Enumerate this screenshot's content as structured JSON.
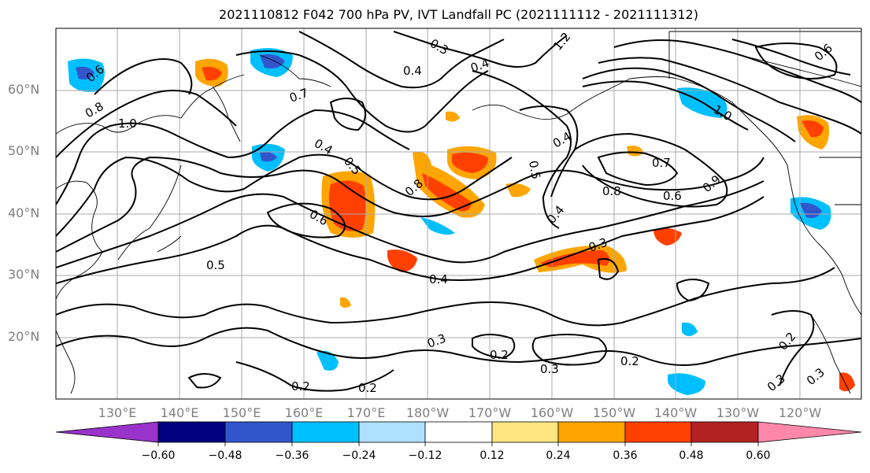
{
  "title": "2021110812 F042 700 hPa PV, IVT Landfall PC (2021111112 - 2021111312)",
  "map": {
    "lat_labels": [
      "60°N",
      "50°N",
      "40°N",
      "30°N",
      "20°N"
    ],
    "lon_labels": [
      "130°E",
      "140°E",
      "150°E",
      "160°E",
      "170°E",
      "180°W",
      "170°W",
      "160°W",
      "150°W",
      "140°W",
      "130°W",
      "120°W"
    ],
    "contour_labels": [
      "0.5",
      "0.6",
      "0.8",
      "1.0",
      "0.7",
      "0.6",
      "0.4",
      "0.5",
      "0.3",
      "0.4",
      "0.4",
      "0.7",
      "0.8",
      "0.8",
      "0.6",
      "0.9",
      "0.4",
      "0.4",
      "0.5",
      "0.4",
      "0.3",
      "0.3",
      "0.2",
      "0.3",
      "0.2",
      "0.2",
      "0.2",
      "0.2",
      "0.3",
      "0.6",
      "1.2",
      "1.0",
      "0.3"
    ],
    "colors": {
      "contour": "#000000",
      "grid": "#aaaaaa",
      "coast": "#000000"
    }
  },
  "colorbar": {
    "ticks": [
      "−0.60",
      "−0.48",
      "−0.36",
      "−0.24",
      "−0.12",
      "0.12",
      "0.24",
      "0.36",
      "0.48",
      "0.60"
    ],
    "colors": [
      "#9933cc",
      "#000080",
      "#3355cc",
      "#00bfff",
      "#b0e0ff",
      "#ffffff",
      "#ffe680",
      "#ffa500",
      "#ff4000",
      "#b22222",
      "#ff88aa"
    ]
  }
}
